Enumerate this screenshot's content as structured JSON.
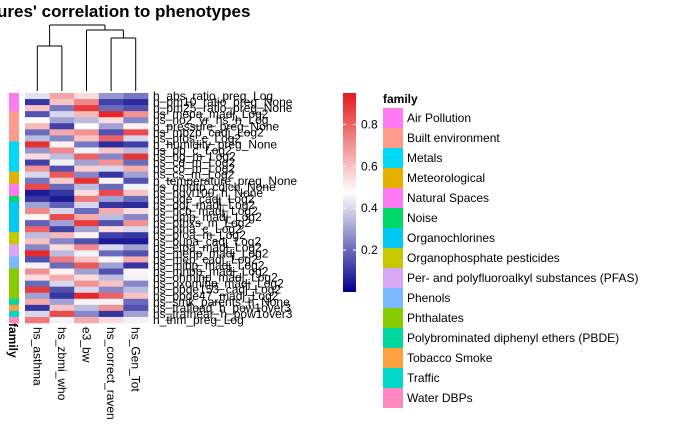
{
  "chart_data": {
    "type": "heatmap",
    "title": "Exposures' correlation to phenotypes",
    "title_visible": "ures' correlation to phenotypes",
    "columns": [
      "hs_asthma",
      "hs_zbmi_who",
      "e3_bw",
      "hs_correct_raven",
      "hs_Gen_Tot"
    ],
    "annotation_label": "family",
    "colorbar": {
      "min": 0,
      "max": 0.95,
      "ticks": [
        0.2,
        0.4,
        0.6,
        0.8
      ],
      "tick_labels": [
        "0.2",
        "0.4",
        "0.6",
        "0.8"
      ],
      "colors": {
        "low": "#00008B",
        "mid": "#FFFFFF",
        "high": "#E41A1C"
      }
    },
    "row_labels_visible": [
      "h_abs_ratio_preg_Log",
      "h_pm10_ratio_preg_None",
      "h_pm25_ratio_preg_None",
      "hs_mepa_madj_Log2",
      "hs_no2_yr_hs_h_Log",
      "h_pressure_preg_None",
      "hs_mbzp_cadj_Log2",
      "hs_pfos_c_Log2",
      "h_humidity_preg_None",
      "hs_pb_c_Log2",
      "hs_hg_m_Log2",
      "hs_cd_m_Log2",
      "hs_co_m_Log2",
      "hs_cs_m_Log2",
      "h_temperature_preg_None",
      "hs_dmdtp_cdich_None",
      "hs_ndvi100_h_None",
      "hs_dde_cadj_Log2",
      "hs_ddt_madj_Log2",
      "hs_hcb_madj_Log2",
      "hs_dmp_madj_Log2",
      "hs_pfhxs_m_Log2",
      "hs_pfna_c_Log2",
      "hs_pfoa_m_Log2",
      "hs_bupa_cadj_Log2",
      "hs_etpa_madj_Log2",
      "hs_mehp_madj_Log2",
      "hs_mep_cadj_Log2",
      "hs_mibp_madj_Log2",
      "hs_mnbp_madj_Log2",
      "hs_ohminp_madj_Log2",
      "hs_oxominp_madj_Log2",
      "hs_pbde153_cadj_Log2",
      "hs_pbde47_madj_Log2",
      "hs_smk_parents_h_None",
      "hs_trafload_h_pow1over3",
      "hs_trafnear_h_pow1over3",
      "h_thm_preg_Log"
    ],
    "row_family": [
      0,
      0,
      0,
      1,
      1,
      1,
      1,
      1,
      2,
      2,
      2,
      2,
      2,
      3,
      3,
      4,
      4,
      5,
      6,
      6,
      6,
      6,
      6,
      7,
      7,
      8,
      8,
      9,
      9,
      10,
      10,
      10,
      10,
      10,
      11,
      12,
      13,
      14
    ],
    "values": [
      [
        0.42,
        0.66,
        0.55,
        0.28,
        0.22
      ],
      [
        0.1,
        0.6,
        0.72,
        0.12,
        0.08
      ],
      [
        0.6,
        0.22,
        0.88,
        0.2,
        0.15
      ],
      [
        0.15,
        0.4,
        0.62,
        0.92,
        0.7
      ],
      [
        0.48,
        0.3,
        0.35,
        0.55,
        0.25
      ],
      [
        0.62,
        0.12,
        0.48,
        0.3,
        0.5
      ],
      [
        0.2,
        0.65,
        0.7,
        0.15,
        0.85
      ],
      [
        0.35,
        0.25,
        0.6,
        0.8,
        0.4
      ],
      [
        0.9,
        0.5,
        0.22,
        0.08,
        0.12
      ],
      [
        0.28,
        0.72,
        0.45,
        0.6,
        0.35
      ],
      [
        0.55,
        0.35,
        0.8,
        0.25,
        0.9
      ],
      [
        0.12,
        0.45,
        0.3,
        0.7,
        0.2
      ],
      [
        0.7,
        0.15,
        0.58,
        0.4,
        0.65
      ],
      [
        0.4,
        0.82,
        0.25,
        0.1,
        0.3
      ],
      [
        0.22,
        0.58,
        0.9,
        0.5,
        0.15
      ],
      [
        0.85,
        0.2,
        0.35,
        0.2,
        0.45
      ],
      [
        0.05,
        0.1,
        0.55,
        0.85,
        0.6
      ],
      [
        0.1,
        0.05,
        0.75,
        0.3,
        0.2
      ],
      [
        0.3,
        0.18,
        0.4,
        0.1,
        0.08
      ],
      [
        0.72,
        0.4,
        0.2,
        0.65,
        0.55
      ],
      [
        0.5,
        0.85,
        0.65,
        0.35,
        0.25
      ],
      [
        0.18,
        0.3,
        0.88,
        0.15,
        0.7
      ],
      [
        0.8,
        0.12,
        0.3,
        0.55,
        0.4
      ],
      [
        0.35,
        0.62,
        0.5,
        0.12,
        0.1
      ],
      [
        0.6,
        0.25,
        0.15,
        0.05,
        0.05
      ],
      [
        0.25,
        0.55,
        0.72,
        0.4,
        0.3
      ],
      [
        0.92,
        0.35,
        0.45,
        0.2,
        0.15
      ],
      [
        0.15,
        0.75,
        0.6,
        0.5,
        0.65
      ],
      [
        0.45,
        0.2,
        0.82,
        0.3,
        0.1
      ],
      [
        0.7,
        0.5,
        0.3,
        0.15,
        0.5
      ],
      [
        0.55,
        0.65,
        0.55,
        0.35,
        0.45
      ],
      [
        0.2,
        0.4,
        0.7,
        0.6,
        0.25
      ],
      [
        0.88,
        0.15,
        0.4,
        0.25,
        0.35
      ],
      [
        0.3,
        0.1,
        0.92,
        0.8,
        0.6
      ],
      [
        0.65,
        0.3,
        0.5,
        0.45,
        0.2
      ],
      [
        0.1,
        0.6,
        0.35,
        0.7,
        0.15
      ],
      [
        0.4,
        0.85,
        0.25,
        0.1,
        0.3
      ],
      [
        0.75,
        0.45,
        0.65,
        0.55,
        0.45
      ]
    ],
    "legend": {
      "title": "family",
      "placement": "right",
      "entries": [
        {
          "label": "Air Pollution",
          "color": "#FF7AF0"
        },
        {
          "label": "Built environment",
          "color": "#FF9B8C"
        },
        {
          "label": "Metals",
          "color": "#00D9F5"
        },
        {
          "label": "Meteorological",
          "color": "#E6B000"
        },
        {
          "label": "Natural Spaces",
          "color": "#FF7AF0"
        },
        {
          "label": "Noise",
          "color": "#00D968"
        },
        {
          "label": "Organochlorines",
          "color": "#00C8F0"
        },
        {
          "label": "Organophosphate pesticides",
          "color": "#C8C800"
        },
        {
          "label": "Per- and polyfluoroalkyl substances (PFAS)",
          "color": "#D8A8F5"
        },
        {
          "label": "Phenols",
          "color": "#7AB8FF"
        },
        {
          "label": "Phthalates",
          "color": "#88CC00"
        },
        {
          "label": "Polybrominated diphenyl ethers (PBDE)",
          "color": "#00D8A0"
        },
        {
          "label": "Tobacco Smoke",
          "color": "#FFA040"
        },
        {
          "label": "Traffic",
          "color": "#00D8C8"
        },
        {
          "label": "Water DBPs",
          "color": "#FF88C0"
        }
      ]
    }
  }
}
